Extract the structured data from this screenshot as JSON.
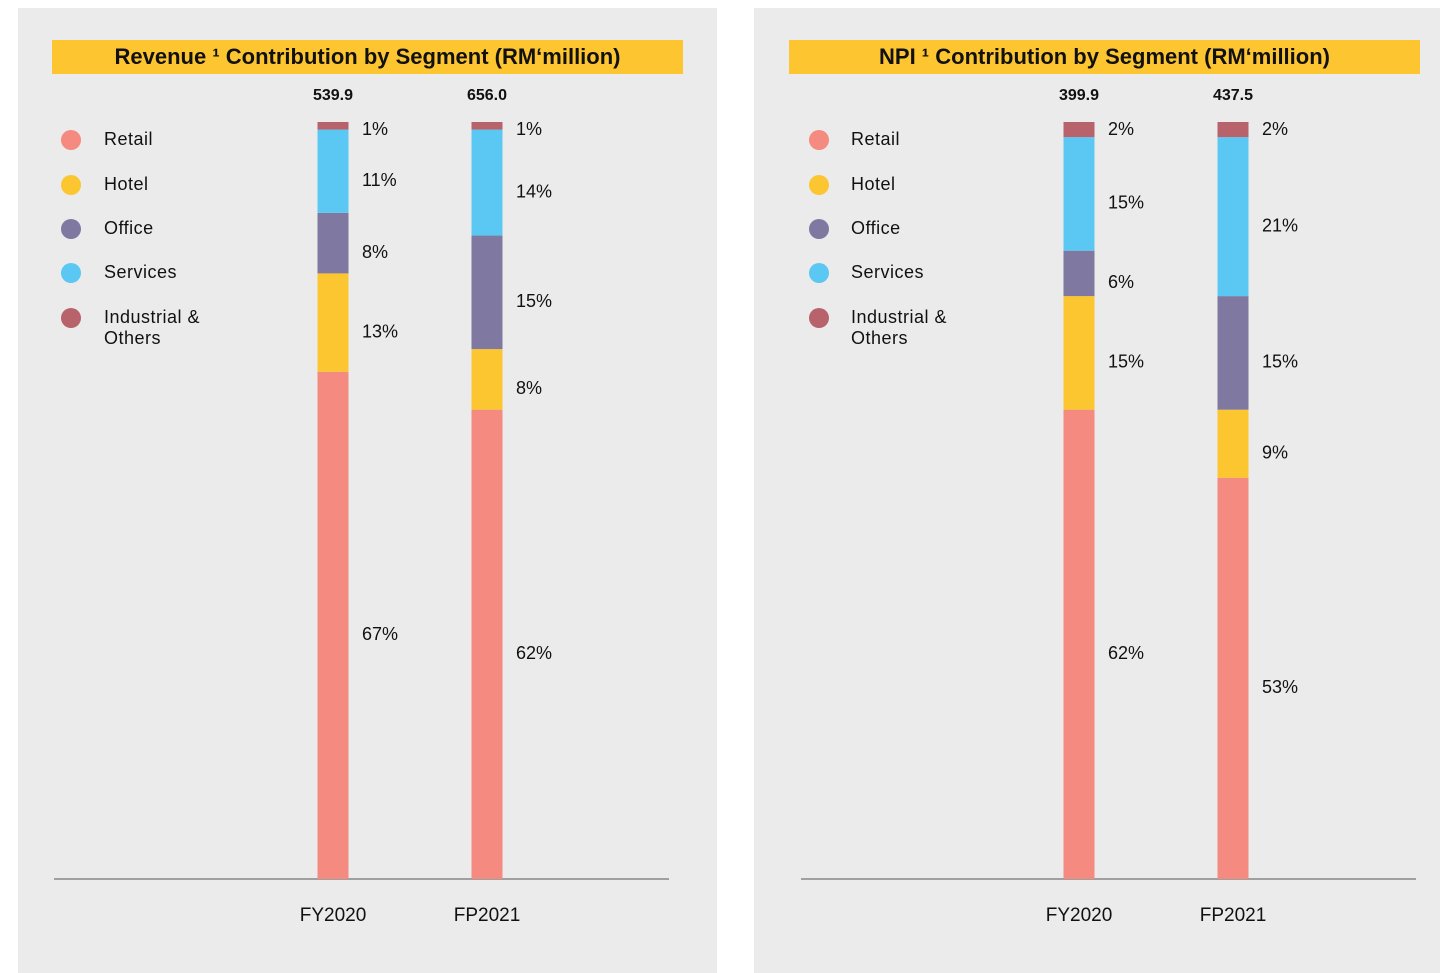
{
  "chart_data": [
    {
      "type": "stacked_bar",
      "title": "Revenue ¹ Contribution by Segment (RM‘million)",
      "categories": [
        "FY2020",
        "FP2021"
      ],
      "totals": {
        "values": [
          539.9,
          656.0
        ],
        "value_labels": [
          "539.9",
          "656.0"
        ]
      },
      "series": [
        {
          "name": "Retail",
          "color": "#f48a80",
          "values": [
            67,
            62
          ],
          "value_labels": [
            "67%",
            "62%"
          ]
        },
        {
          "name": "Hotel",
          "color": "#fcc630",
          "values": [
            13,
            8
          ],
          "value_labels": [
            "13%",
            "8%"
          ]
        },
        {
          "name": "Office",
          "color": "#7f78a0",
          "values": [
            8,
            15
          ],
          "value_labels": [
            "8%",
            "15%"
          ]
        },
        {
          "name": "Services",
          "color": "#5bc8f3",
          "values": [
            11,
            14
          ],
          "value_labels": [
            "11%",
            "14%"
          ]
        },
        {
          "name": "Industrial & Others",
          "color": "#b8636b",
          "values": [
            1,
            1
          ],
          "value_labels": [
            "1%",
            "1%"
          ]
        }
      ]
    },
    {
      "type": "stacked_bar",
      "title": "NPI ¹ Contribution by Segment (RM‘million)",
      "categories": [
        "FY2020",
        "FP2021"
      ],
      "totals": {
        "values": [
          399.9,
          437.5
        ],
        "value_labels": [
          "399.9",
          "437.5"
        ]
      },
      "series": [
        {
          "name": "Retail",
          "color": "#f48a80",
          "values": [
            62,
            53
          ],
          "value_labels": [
            "62%",
            "53%"
          ]
        },
        {
          "name": "Hotel",
          "color": "#fcc630",
          "values": [
            15,
            9
          ],
          "value_labels": [
            "15%",
            "9%"
          ]
        },
        {
          "name": "Office",
          "color": "#7f78a0",
          "values": [
            6,
            15
          ],
          "value_labels": [
            "6%",
            "15%"
          ]
        },
        {
          "name": "Services",
          "color": "#5bc8f3",
          "values": [
            15,
            21
          ],
          "value_labels": [
            "15%",
            "21%"
          ]
        },
        {
          "name": "Industrial & Others",
          "color": "#b8636b",
          "values": [
            2,
            2
          ],
          "value_labels": [
            "2%",
            "2%"
          ]
        }
      ]
    }
  ]
}
